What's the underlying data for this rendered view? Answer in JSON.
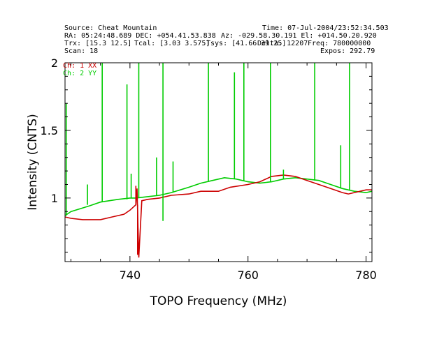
{
  "header": {
    "source": "Source: Cheat Mountain",
    "time": "Time: 07-Jul-2004/23:52:34.503",
    "ra_dec": "RA: 05:24:48.689 DEC: +054.41.53.838",
    "az_el": "Az: -029.58.30.191 El: +014.50.20.920",
    "trx": "Trx: [15.3 12.5]",
    "tcal": "Tcal: [3.03 3.575]",
    "tsys": "Tsys: [41.66 39.25]",
    "delta": "Delta: 12207",
    "freq": "Freq: 780000000",
    "scan": "Scan: 18",
    "expos": "Expos: 292.79"
  },
  "colors": {
    "ch1": "#cc0000",
    "ch2": "#00cc00",
    "axis": "#000000"
  },
  "chart_data": {
    "type": "line",
    "xlabel": "TOPO Frequency (MHz)",
    "ylabel": "Intensity (CNTS)",
    "xlim": [
      729,
      781
    ],
    "ylim": [
      0.53,
      2.0
    ],
    "xticks": [
      740,
      760,
      780
    ],
    "yticks": [
      1,
      1.5,
      2
    ],
    "legend": [
      "Ch: 1 XX",
      "Ch: 2 YY"
    ],
    "grid": false,
    "series": [
      {
        "name": "Ch: 1 XX",
        "color": "#cc0000",
        "x": [
          729,
          730,
          732,
          735,
          737,
          739,
          740,
          740.5,
          741,
          741.2,
          741.5,
          742,
          743,
          745,
          747,
          750,
          752,
          755,
          757,
          760,
          762,
          764,
          766,
          768,
          770,
          772,
          774,
          776,
          777,
          778,
          780,
          781
        ],
        "y": [
          0.86,
          0.85,
          0.84,
          0.84,
          0.86,
          0.88,
          0.91,
          0.93,
          0.95,
          1.07,
          0.56,
          0.98,
          0.99,
          1.0,
          1.02,
          1.03,
          1.05,
          1.05,
          1.08,
          1.1,
          1.12,
          1.16,
          1.17,
          1.16,
          1.13,
          1.1,
          1.07,
          1.04,
          1.03,
          1.04,
          1.06,
          1.06
        ]
      },
      {
        "name": "Ch: 2 YY",
        "color": "#00cc00",
        "x": [
          729,
          730,
          733,
          735,
          738,
          740,
          741,
          743,
          745,
          747,
          750,
          752,
          754,
          756,
          758,
          760,
          762,
          764,
          766,
          768,
          770,
          772,
          774,
          776,
          778,
          780,
          781
        ],
        "y": [
          0.87,
          0.9,
          0.94,
          0.97,
          0.99,
          1.0,
          1.0,
          1.01,
          1.02,
          1.04,
          1.08,
          1.11,
          1.13,
          1.15,
          1.14,
          1.12,
          1.11,
          1.12,
          1.14,
          1.15,
          1.14,
          1.13,
          1.1,
          1.07,
          1.05,
          1.04,
          1.05
        ]
      }
    ],
    "spikes": [
      {
        "series": "Ch: 2 YY",
        "x": 729.2,
        "from": 0.87,
        "to": 1.7
      },
      {
        "series": "Ch: 2 YY",
        "x": 732.8,
        "from": 0.95,
        "to": 1.1
      },
      {
        "series": "Ch: 2 YY",
        "x": 735.3,
        "from": 0.97,
        "to": 2.0
      },
      {
        "series": "Ch: 2 YY",
        "x": 739.5,
        "from": 0.99,
        "to": 1.84
      },
      {
        "series": "Ch: 2 YY",
        "x": 740.2,
        "from": 1.0,
        "to": 1.18
      },
      {
        "series": "Ch: 2 YY",
        "x": 741.5,
        "from": 1.0,
        "to": 2.0
      },
      {
        "series": "Ch: 2 YY",
        "x": 744.5,
        "from": 1.02,
        "to": 1.3
      },
      {
        "series": "Ch: 2 YY",
        "x": 745.6,
        "from": 0.83,
        "to": 2.0
      },
      {
        "series": "Ch: 2 YY",
        "x": 747.3,
        "from": 1.04,
        "to": 1.27
      },
      {
        "series": "Ch: 2 YY",
        "x": 753.3,
        "from": 1.12,
        "to": 2.0
      },
      {
        "series": "Ch: 2 YY",
        "x": 757.7,
        "from": 1.14,
        "to": 1.93
      },
      {
        "series": "Ch: 2 YY",
        "x": 759.3,
        "from": 1.13,
        "to": 2.0
      },
      {
        "series": "Ch: 2 YY",
        "x": 763.8,
        "from": 1.12,
        "to": 2.0
      },
      {
        "series": "Ch: 2 YY",
        "x": 766.0,
        "from": 1.14,
        "to": 1.21
      },
      {
        "series": "Ch: 2 YY",
        "x": 771.3,
        "from": 1.13,
        "to": 2.0
      },
      {
        "series": "Ch: 2 YY",
        "x": 775.7,
        "from": 1.07,
        "to": 1.39
      },
      {
        "series": "Ch: 2 YY",
        "x": 777.2,
        "from": 1.06,
        "to": 2.0
      },
      {
        "series": "Ch: 1 XX",
        "x": 741.0,
        "from": 0.95,
        "to": 1.09
      },
      {
        "series": "Ch: 1 XX",
        "x": 741.3,
        "from": 0.95,
        "to": 0.58
      }
    ]
  }
}
